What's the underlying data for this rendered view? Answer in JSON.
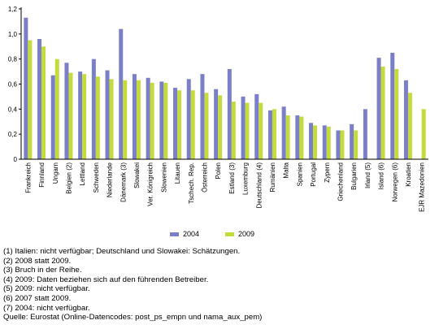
{
  "chart_data": {
    "type": "bar",
    "title": "",
    "xlabel": "",
    "ylabel": "",
    "ylim": [
      0,
      1.2
    ],
    "yticks": [
      "0",
      "0,2",
      "0,4",
      "0,6",
      "0,8",
      "1,0",
      "1,2"
    ],
    "grid": false,
    "legend_position": "bottom",
    "colors": {
      "2004": "#7b7fc7",
      "2009": "#c3dc3c"
    },
    "categories": [
      "Frankreich",
      "Finnland",
      "Ungarn",
      "Belgien (2)",
      "Lettland",
      "Schweden",
      "Niederlande",
      "Dänemark (3)",
      "Slowakei",
      "Ver. Königreich",
      "Slowenien",
      "Litauen",
      "Tschech. Rep.",
      "Österreich",
      "Polen",
      "Estland (3)",
      "Luxemburg",
      "Deutschland (4)",
      "Rumänien",
      "Malta",
      "Spanien",
      "Portugal",
      "Zypern",
      "Griechenland",
      "Bulgarien",
      "Irland (5)",
      "Island (6)",
      "Norwegen (6)",
      "Kroatien",
      "EJR Mazedonien"
    ],
    "series": [
      {
        "name": "2004",
        "values": [
          1.13,
          0.96,
          0.67,
          0.77,
          0.7,
          0.8,
          0.71,
          1.04,
          0.68,
          0.65,
          0.62,
          0.57,
          0.64,
          0.68,
          0.56,
          0.72,
          0.5,
          0.52,
          0.39,
          0.42,
          0.35,
          0.29,
          0.27,
          0.23,
          0.28,
          0.4,
          0.81,
          0.85,
          0.63,
          null
        ]
      },
      {
        "name": "2009",
        "values": [
          0.95,
          0.9,
          0.8,
          0.69,
          0.68,
          0.66,
          0.64,
          0.63,
          0.63,
          0.61,
          0.61,
          0.55,
          0.55,
          0.53,
          0.51,
          0.46,
          0.45,
          0.45,
          0.4,
          0.35,
          0.34,
          0.27,
          0.26,
          0.23,
          0.23,
          null,
          0.74,
          0.72,
          0.53,
          0.4
        ]
      }
    ]
  },
  "notes": [
    "(1) Italien: nicht verfügbar; Deutschland und Slowakei: Schätzungen.",
    "(2) 2008 statt 2009.",
    "(3) Bruch in der Reihe.",
    "(4) 2009: Daten beziehen sich auf den führenden Betreiber.",
    "(5) 2009: nicht verfügbar.",
    "(6) 2007 statt 2009.",
    "(7) 2004: nicht verfügbar.",
    "Quelle: Eurostat (Online-Datencodes: post_ps_empn und nama_aux_pem)"
  ]
}
